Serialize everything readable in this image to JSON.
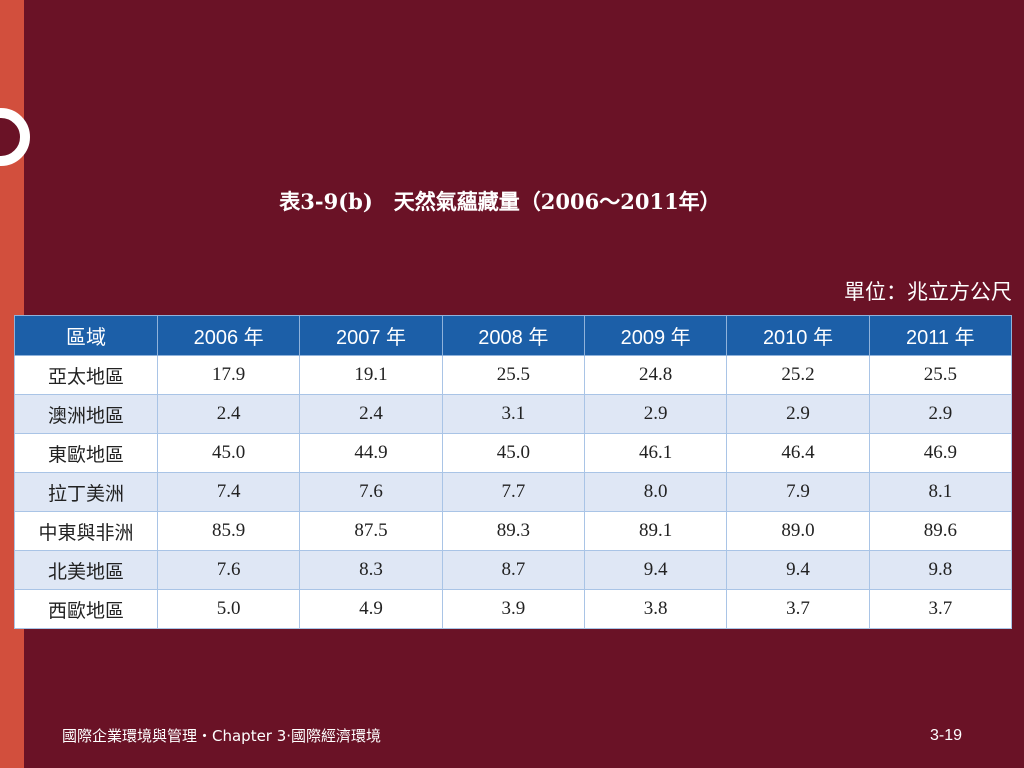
{
  "slide": {
    "title": "表3-9(b)　天然氣蘊藏量（2006～2011年）",
    "unit": "單位：兆立方公尺",
    "footer": "國際企業環境與管理・Chapter 3‧國際經濟環境",
    "page_number": "3-19"
  },
  "table": {
    "headers": [
      "區域",
      "2006 年",
      "2007 年",
      "2008 年",
      "2009 年",
      "2010 年",
      "2011 年"
    ],
    "rows": [
      {
        "region": "亞太地區",
        "values": [
          "17.9",
          "19.1",
          "25.5",
          "24.8",
          "25.2",
          "25.5"
        ]
      },
      {
        "region": "澳洲地區",
        "values": [
          "2.4",
          "2.4",
          "3.1",
          "2.9",
          "2.9",
          "2.9"
        ]
      },
      {
        "region": "東歐地區",
        "values": [
          "45.0",
          "44.9",
          "45.0",
          "46.1",
          "46.4",
          "46.9"
        ]
      },
      {
        "region": "拉丁美洲",
        "values": [
          "7.4",
          "7.6",
          "7.7",
          "8.0",
          "7.9",
          "8.1"
        ]
      },
      {
        "region": "中東與非洲",
        "values": [
          "85.9",
          "87.5",
          "89.3",
          "89.1",
          "89.0",
          "89.6"
        ]
      },
      {
        "region": "北美地區",
        "values": [
          "7.6",
          "8.3",
          "8.7",
          "9.4",
          "9.4",
          "9.8"
        ]
      },
      {
        "region": "西歐地區",
        "values": [
          "5.0",
          "4.9",
          "3.9",
          "3.8",
          "3.7",
          "3.7"
        ]
      }
    ]
  },
  "colors": {
    "background": "#6a1226",
    "accent_strip": "#d24f3d",
    "header_blue": "#1c5fa8",
    "row_alt": "#dfe7f5"
  }
}
